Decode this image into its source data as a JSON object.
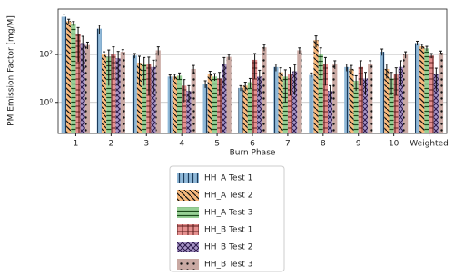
{
  "chart_data": {
    "type": "bar",
    "log_scale": true,
    "grid": true,
    "xlabel": "Burn Phase",
    "ylabel": "PM Emission Factor [mg/M]",
    "categories": [
      "1",
      "2",
      "3",
      "4",
      "5",
      "6",
      "7",
      "8",
      "9",
      "10",
      "Weighted"
    ],
    "ylim": [
      0.05,
      8000
    ],
    "yticks": [
      {
        "value": 1,
        "label": "10⁰"
      },
      {
        "value": 100,
        "label": "10²"
      }
    ],
    "legend": "below",
    "series": [
      {
        "name": "HH_A Test 1",
        "color": "#8fb8d8",
        "values": [
          3800,
          1200,
          90,
          12,
          6,
          4,
          30,
          14,
          30,
          130,
          300
        ],
        "errors": [
          800,
          500,
          20,
          2,
          2,
          1,
          10,
          3,
          10,
          40,
          60
        ]
      },
      {
        "name": "HH_A Test 2",
        "color": "#f7b87c",
        "values": [
          2500,
          100,
          45,
          12,
          15,
          5,
          18,
          400,
          25,
          25,
          220
        ],
        "errors": [
          500,
          30,
          40,
          3,
          5,
          2,
          10,
          200,
          10,
          15,
          50
        ]
      },
      {
        "name": "HH_A Test 3",
        "color": "#97d095",
        "values": [
          2000,
          80,
          40,
          13,
          12,
          7,
          12,
          100,
          8,
          10,
          180
        ],
        "errors": [
          400,
          75,
          35,
          4,
          4,
          3,
          11,
          90,
          5,
          8,
          40
        ]
      },
      {
        "name": "HH_B Test 1",
        "color": "#e5908f",
        "values": [
          700,
          110,
          40,
          5,
          10,
          60,
          15,
          40,
          30,
          15,
          90
        ],
        "errors": [
          650,
          100,
          38,
          4,
          8,
          50,
          13,
          35,
          25,
          13,
          20
        ]
      },
      {
        "name": "HH_B Test 2",
        "color": "#a895c7",
        "values": [
          300,
          70,
          30,
          3,
          40,
          12,
          20,
          3,
          10,
          30,
          15
        ],
        "errors": [
          280,
          65,
          28,
          2,
          35,
          10,
          18,
          2,
          8,
          25,
          12
        ]
      },
      {
        "name": "HH_B Test 3",
        "color": "#c9a9a3",
        "values": [
          250,
          130,
          150,
          25,
          80,
          200,
          150,
          40,
          40,
          100,
          120
        ],
        "errors": [
          80,
          30,
          60,
          10,
          20,
          60,
          40,
          15,
          15,
          30,
          20
        ]
      }
    ]
  }
}
